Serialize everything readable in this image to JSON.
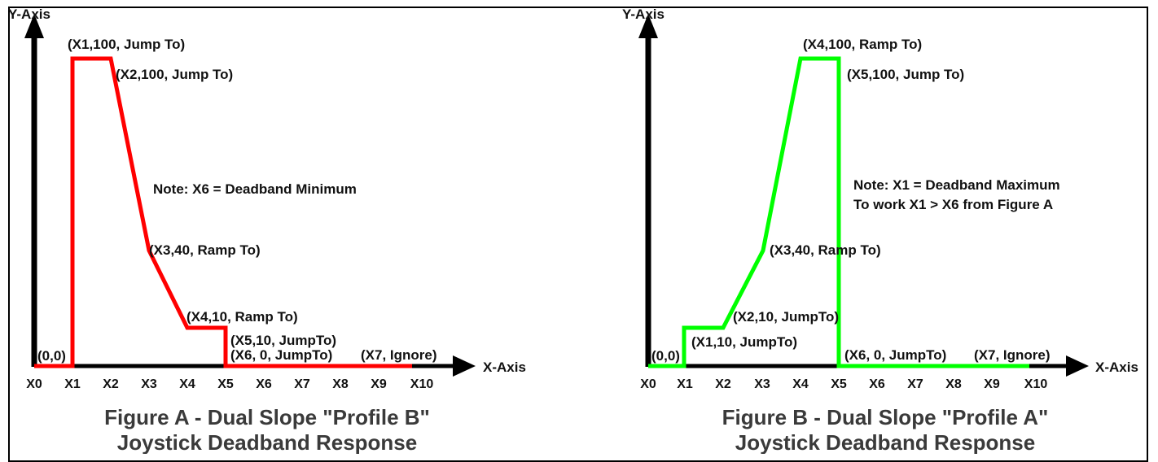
{
  "figure_a": {
    "y_axis_label": "Y-Axis",
    "x_axis_label": "X-Axis",
    "origin_label": "(0,0)",
    "x_ticks": [
      "X0",
      "X1",
      "X2",
      "X3",
      "X4",
      "X5",
      "X6",
      "X7",
      "X8",
      "X9",
      "X10"
    ],
    "line_color": "#ff0000",
    "point_labels": {
      "x1": "(X1,100, Jump To)",
      "x2": "(X2,100, Jump To)",
      "x3": "(X3,40, Ramp To)",
      "x4": "(X4,10, Ramp To)",
      "x5": "(X5,10, JumpTo)",
      "x6": "(X6, 0, JumpTo)",
      "x7": "(X7, Ignore)"
    },
    "note": "Note: X6 = Deadband Minimum",
    "caption_line1": "Figure A - Dual Slope \"Profile B\"",
    "caption_line2": "Joystick Deadband Response"
  },
  "figure_b": {
    "y_axis_label": "Y-Axis",
    "x_axis_label": "X-Axis",
    "origin_label": "(0,0)",
    "x_ticks": [
      "X0",
      "X1",
      "X2",
      "X3",
      "X4",
      "X5",
      "X6",
      "X7",
      "X8",
      "X9",
      "X10"
    ],
    "line_color": "#00ff00",
    "point_labels": {
      "x1": "(X1,10, JumpTo)",
      "x2": "(X2,10, JumpTo)",
      "x3": "(X3,40, Ramp To)",
      "x4": "(X4,100, Ramp To)",
      "x5": "(X5,100, Jump To)",
      "x6": "(X6, 0, JumpTo)",
      "x7": "(X7, Ignore)"
    },
    "note_line1": "Note: X1 = Deadband Maximum",
    "note_line2": "To work X1 > X6 from Figure A",
    "caption_line1": "Figure B - Dual Slope \"Profile A\"",
    "caption_line2": "Joystick Deadband Response"
  }
}
